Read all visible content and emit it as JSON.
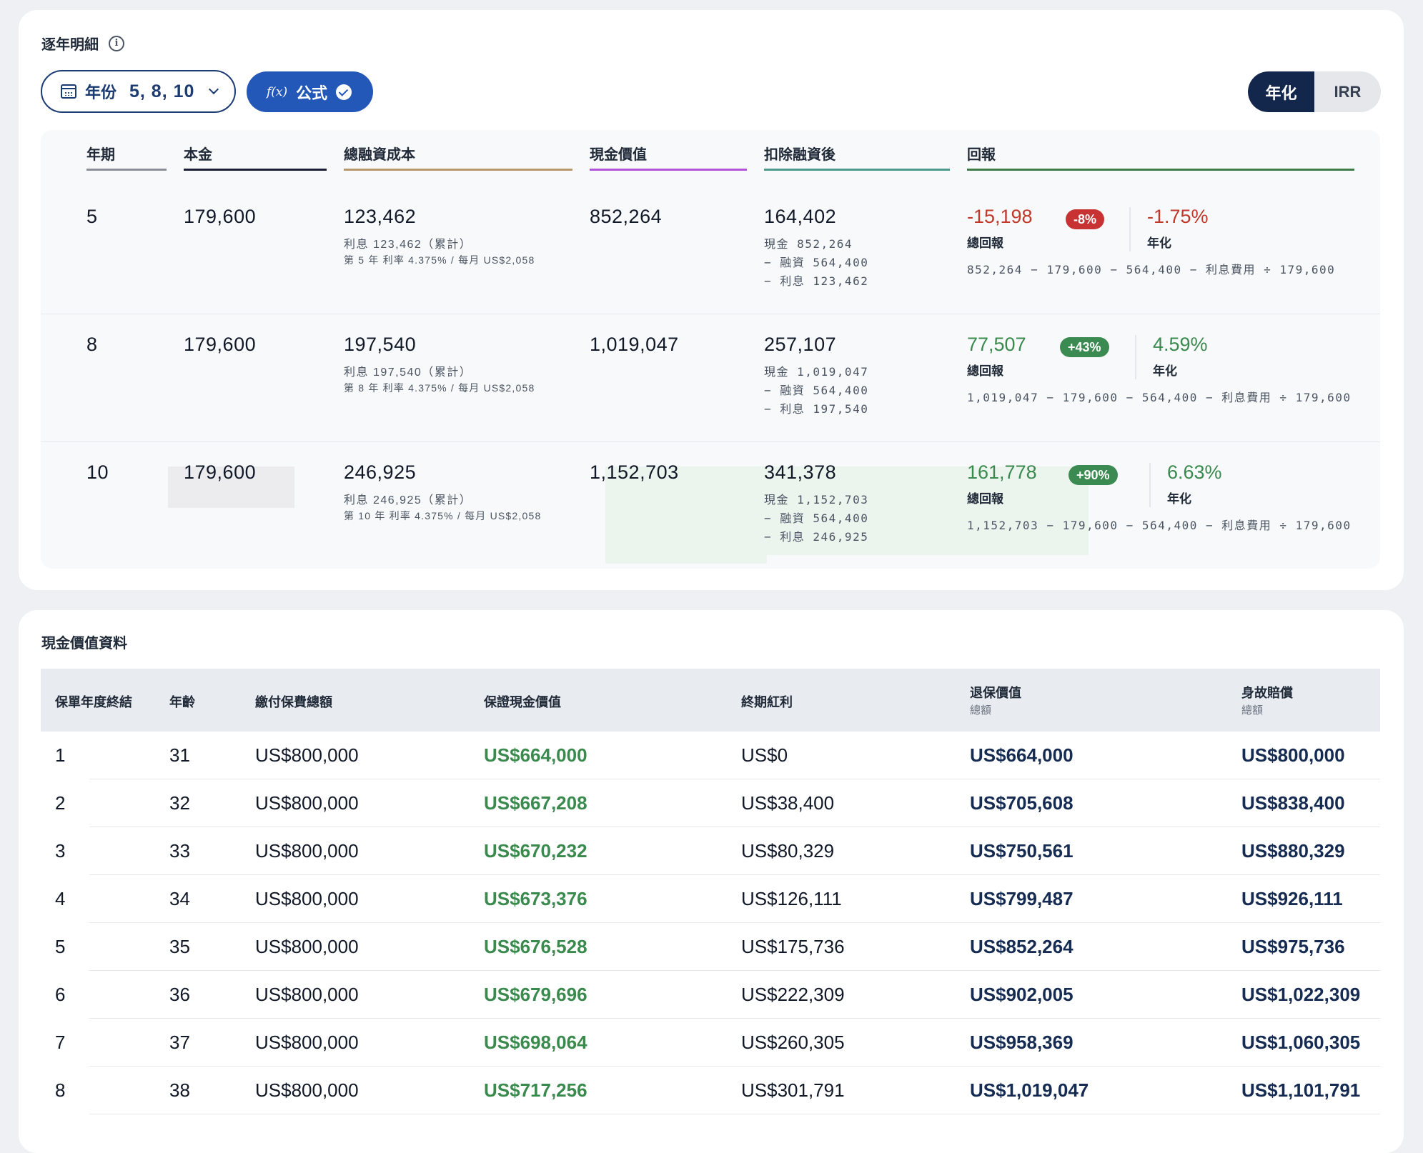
{
  "detail": {
    "title": "逐年明細",
    "year_filter": {
      "label": "年份",
      "value": "5, 8, 10"
    },
    "formula_button": {
      "fx": "f(x)",
      "label": "公式"
    },
    "toggle": {
      "options": [
        "年化",
        "IRR"
      ],
      "active": "年化"
    },
    "columns": [
      "年期",
      "本金",
      "總融資成本",
      "現金價值",
      "扣除融資後",
      "回報"
    ],
    "rows": [
      {
        "year": "5",
        "principal": "179,600",
        "financing_cost": "123,462",
        "interest_note": "利息 123,462（累計）",
        "rate_note": "第 5 年 利率 4.375% / 每月 US$2,058",
        "cash_value": "852,264",
        "net": "164,402",
        "net_cash": "現金 852,264",
        "net_loan": "− 融資 564,400",
        "net_interest": "− 利息 123,462",
        "total_return": "-15,198",
        "return_badge": "-8%",
        "total_return_label": "總回報",
        "annualized": "-1.75%",
        "annualized_label": "年化",
        "formula": "852,264 − 179,600 − 564,400 − 利息費用 ÷ 179,600",
        "trend": "negative"
      },
      {
        "year": "8",
        "principal": "179,600",
        "financing_cost": "197,540",
        "interest_note": "利息 197,540（累計）",
        "rate_note": "第 8 年 利率 4.375% / 每月 US$2,058",
        "cash_value": "1,019,047",
        "net": "257,107",
        "net_cash": "現金 1,019,047",
        "net_loan": "− 融資 564,400",
        "net_interest": "− 利息 197,540",
        "total_return": "77,507",
        "return_badge": "+43%",
        "total_return_label": "總回報",
        "annualized": "4.59%",
        "annualized_label": "年化",
        "formula": "1,019,047 − 179,600 − 564,400 − 利息費用 ÷ 179,600",
        "trend": "positive"
      },
      {
        "year": "10",
        "principal": "179,600",
        "financing_cost": "246,925",
        "interest_note": "利息 246,925（累計）",
        "rate_note": "第 10 年 利率 4.375% / 每月 US$2,058",
        "cash_value": "1,152,703",
        "net": "341,378",
        "net_cash": "現金 1,152,703",
        "net_loan": "− 融資 564,400",
        "net_interest": "− 利息 246,925",
        "total_return": "161,778",
        "return_badge": "+90%",
        "total_return_label": "總回報",
        "annualized": "6.63%",
        "annualized_label": "年化",
        "formula": "1,152,703 − 179,600 − 564,400 − 利息費用 ÷ 179,600",
        "trend": "positive"
      }
    ],
    "column_colors": [
      "#8a8f98",
      "#1a1f36",
      "#b8986a",
      "#b455d9",
      "#4c9a8e",
      "#3e7d4a"
    ]
  },
  "cash_value": {
    "title": "現金價值資料",
    "columns": [
      {
        "label": "保單年度終結"
      },
      {
        "label": "年齡"
      },
      {
        "label": "繳付保費總額"
      },
      {
        "label": "保證現金價值"
      },
      {
        "label": "終期紅利"
      },
      {
        "label": "退保價值",
        "sub": "總額"
      },
      {
        "label": "身故賠償",
        "sub": "總額"
      }
    ],
    "rows": [
      [
        "1",
        "31",
        "US$800,000",
        "US$664,000",
        "US$0",
        "US$664,000",
        "US$800,000"
      ],
      [
        "2",
        "32",
        "US$800,000",
        "US$667,208",
        "US$38,400",
        "US$705,608",
        "US$838,400"
      ],
      [
        "3",
        "33",
        "US$800,000",
        "US$670,232",
        "US$80,329",
        "US$750,561",
        "US$880,329"
      ],
      [
        "4",
        "34",
        "US$800,000",
        "US$673,376",
        "US$126,111",
        "US$799,487",
        "US$926,111"
      ],
      [
        "5",
        "35",
        "US$800,000",
        "US$676,528",
        "US$175,736",
        "US$852,264",
        "US$975,736"
      ],
      [
        "6",
        "36",
        "US$800,000",
        "US$679,696",
        "US$222,309",
        "US$902,005",
        "US$1,022,309"
      ],
      [
        "7",
        "37",
        "US$800,000",
        "US$698,064",
        "US$260,305",
        "US$958,369",
        "US$1,060,305"
      ],
      [
        "8",
        "38",
        "US$800,000",
        "US$717,256",
        "US$301,791",
        "US$1,019,047",
        "US$1,101,791"
      ]
    ]
  }
}
